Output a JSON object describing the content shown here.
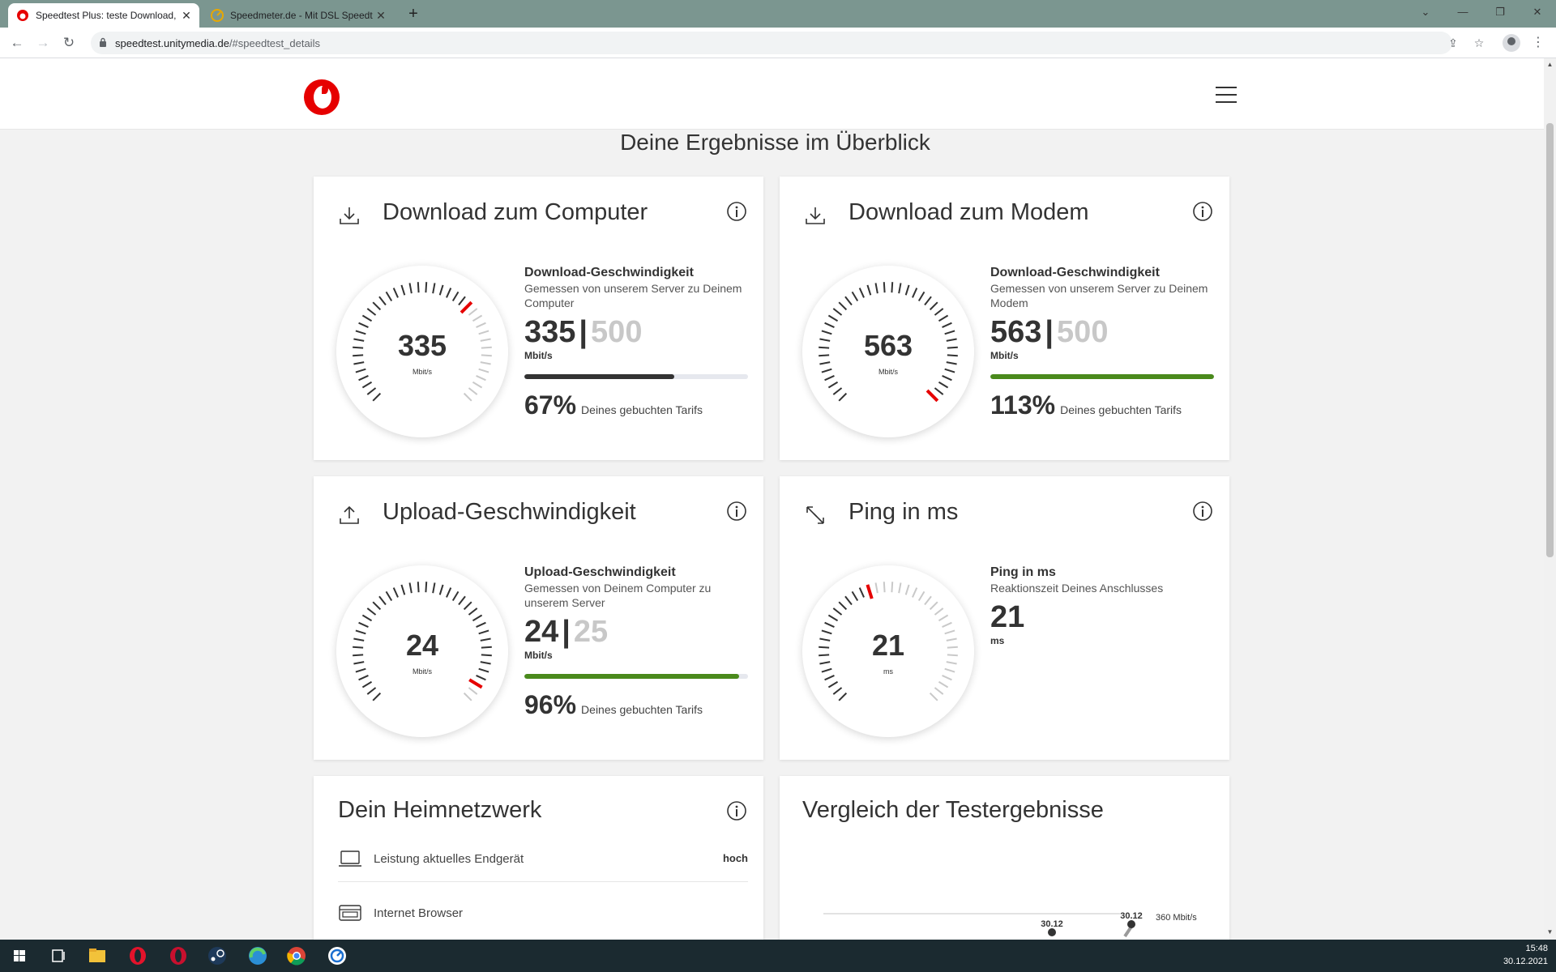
{
  "browser": {
    "tabs": [
      {
        "title": "Speedtest Plus: teste Download,",
        "active": true,
        "icon": "vodafone-favicon"
      },
      {
        "title": "Speedmeter.de - Mit DSL Speedt",
        "active": false,
        "icon": "speedmeter-favicon"
      }
    ],
    "url_host": "speedtest.unitymedia.de",
    "url_path": "/#speedtest_details"
  },
  "page": {
    "section_title": "Deine Ergebnisse im Überblick",
    "colors": {
      "brand": "#e60000",
      "green": "#4a8a1c",
      "dark": "#333333",
      "grey": "#c8c8c8"
    }
  },
  "cards": {
    "download_computer": {
      "title": "Download zum Computer",
      "icon": "download-icon",
      "gauge_value": "335",
      "gauge_unit": "Mbit/s",
      "label": "Download-Geschwindigkeit",
      "sub": "Gemessen von unserem Server zu Deinem Computer",
      "measured": "335",
      "booked": "500",
      "unit": "Mbit/s",
      "percent": "67%",
      "percent_text": "Deines gebuchten Tarifs",
      "bar_fraction": 0.67
    },
    "download_modem": {
      "title": "Download zum Modem",
      "icon": "download-icon",
      "gauge_value": "563",
      "gauge_unit": "Mbit/s",
      "label": "Download-Geschwindigkeit",
      "sub": "Gemessen von unserem Server zu Deinem Modem",
      "measured": "563",
      "booked": "500",
      "unit": "Mbit/s",
      "percent": "113%",
      "percent_text": "Deines gebuchten Tarifs",
      "bar_fraction": 1.0
    },
    "upload": {
      "title": "Upload-Geschwindigkeit",
      "icon": "upload-icon",
      "gauge_value": "24",
      "gauge_unit": "Mbit/s",
      "label": "Upload-Geschwindigkeit",
      "sub": "Gemessen von Deinem Computer zu unserem Server",
      "measured": "24",
      "booked": "25",
      "unit": "Mbit/s",
      "percent": "96%",
      "percent_text": "Deines gebuchten Tarifs",
      "bar_fraction": 0.96
    },
    "ping": {
      "title": "Ping in ms",
      "icon": "ping-arrows-icon",
      "gauge_value": "21",
      "gauge_unit": "ms",
      "label": "Ping in ms",
      "sub": "Reaktionszeit Deines Anschlusses",
      "measured": "21",
      "unit": "ms"
    },
    "home_network": {
      "title": "Dein Heimnetzwerk",
      "rows": [
        {
          "label": "Leistung aktuelles Endgerät",
          "value": "hoch",
          "icon": "laptop-icon"
        },
        {
          "label": "Internet Browser",
          "value": "",
          "icon": "browser-window-icon"
        }
      ]
    },
    "comparison": {
      "title": "Vergleich der Testergebnisse",
      "points": [
        {
          "label": "30.12"
        },
        {
          "label": "30.12"
        }
      ],
      "line_label": "360 Mbit/s"
    }
  },
  "taskbar": {
    "time": "15:48",
    "date": "30.12.2021",
    "apps": [
      "windows-start-icon",
      "task-view-icon",
      "file-explorer-icon",
      "opera-icon",
      "opera-gx-icon",
      "steam-icon",
      "edge-icon",
      "chrome-icon",
      "speedtest-app-icon"
    ]
  }
}
